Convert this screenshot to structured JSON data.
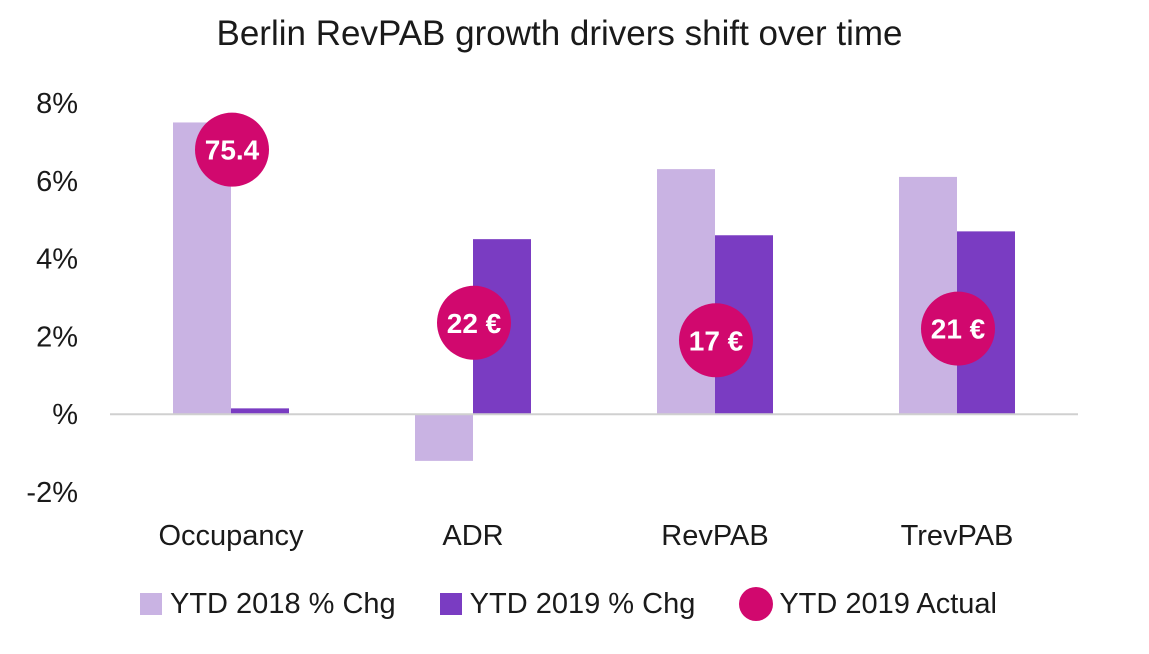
{
  "chart_data": {
    "type": "bar",
    "title": "Berlin RevPAB growth drivers shift over time",
    "categories": [
      "Occupancy",
      "ADR",
      "RevPAB",
      "TrevPAB"
    ],
    "series": [
      {
        "name": "YTD 2018 % Chg",
        "values": [
          7.5,
          -1.2,
          6.3,
          6.1
        ],
        "color": "#c9b3e3"
      },
      {
        "name": "YTD 2019 % Chg",
        "values": [
          0.15,
          4.5,
          4.6,
          4.7
        ],
        "color": "#7a3cc2"
      }
    ],
    "markers": {
      "name": "YTD 2019 Actual",
      "color": "#d1086e",
      "labels": [
        "75.4",
        "22 €",
        "17 €",
        "21 €"
      ],
      "y_positions": [
        6.8,
        2.35,
        1.9,
        2.2
      ]
    },
    "y_ticks": [
      8,
      6,
      4,
      2,
      0,
      -2
    ],
    "y_tick_labels": [
      "8%",
      "6%",
      "4%",
      "2%",
      "%",
      "-2%"
    ],
    "ylim": [
      -2,
      8
    ],
    "legend_position": "bottom"
  }
}
